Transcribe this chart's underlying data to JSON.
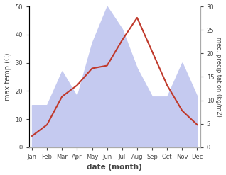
{
  "months": [
    "Jan",
    "Feb",
    "Mar",
    "Apr",
    "May",
    "Jun",
    "Jul",
    "Aug",
    "Sep",
    "Oct",
    "Nov",
    "Dec"
  ],
  "month_positions": [
    0,
    1,
    2,
    3,
    4,
    5,
    6,
    7,
    8,
    9,
    10,
    11
  ],
  "temperature": [
    4,
    8,
    18,
    22,
    28,
    29,
    38,
    46,
    34,
    22,
    13,
    8
  ],
  "precipitation_left": [
    15,
    15,
    27,
    18,
    37,
    50,
    42,
    28,
    18,
    18,
    30,
    18
  ],
  "temp_color": "#c0392b",
  "precip_fill_color": "#c5caf0",
  "temp_ylim": [
    0,
    50
  ],
  "precip_ylim": [
    0,
    30
  ],
  "temp_yticks": [
    0,
    10,
    20,
    30,
    40,
    50
  ],
  "precip_yticks": [
    0,
    5,
    10,
    15,
    20,
    25,
    30
  ],
  "xlabel": "date (month)",
  "ylabel_left": "max temp (C)",
  "ylabel_right": "med. precipitation (kg/m2)",
  "background_color": "#ffffff",
  "spine_color": "#aaaaaa",
  "tick_color": "#444444"
}
